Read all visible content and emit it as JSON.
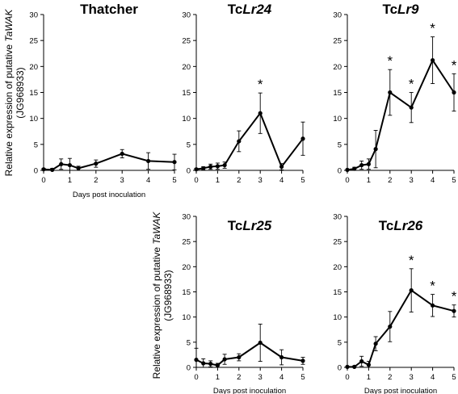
{
  "chart_data": [
    {
      "type": "line",
      "title_parts": [
        {
          "text": "Thatcher",
          "italic": false
        }
      ],
      "xlabel": "Days post inoculation",
      "ylabel_parts": [
        {
          "text": "Relative expression of putative ",
          "italic": false
        },
        {
          "text": "TaWAK",
          "italic": true
        }
      ],
      "ylabel_line2": "(JG968933)",
      "xlim": [
        0,
        5
      ],
      "ylim": [
        0,
        30
      ],
      "xticks": [
        0,
        1,
        2,
        3,
        4,
        5
      ],
      "yticks": [
        0,
        5,
        10,
        15,
        20,
        25,
        30
      ],
      "x": [
        0,
        0.33,
        0.67,
        1,
        1.33,
        2,
        3,
        4,
        5
      ],
      "y": [
        0.2,
        0.1,
        1.2,
        1.0,
        0.4,
        1.3,
        3.2,
        1.8,
        1.6
      ],
      "err": [
        0.2,
        0.3,
        1.0,
        1.3,
        0.4,
        0.7,
        0.8,
        1.6,
        1.5
      ],
      "significant": []
    },
    {
      "type": "line",
      "title_parts": [
        {
          "text": "Tc",
          "italic": false
        },
        {
          "text": "Lr24",
          "italic": true
        }
      ],
      "xlabel": "",
      "ylabel_parts": [],
      "xlim": [
        0,
        5
      ],
      "ylim": [
        0,
        30
      ],
      "xticks": [
        0,
        1,
        2,
        3,
        4,
        5
      ],
      "yticks": [
        0,
        5,
        10,
        15,
        20,
        25,
        30
      ],
      "x": [
        0,
        0.33,
        0.67,
        1,
        1.33,
        2,
        3,
        4,
        5
      ],
      "y": [
        0.2,
        0.4,
        0.7,
        0.8,
        1.0,
        5.6,
        11.0,
        0.7,
        6.1
      ],
      "err": [
        0.2,
        0.3,
        0.5,
        0.6,
        0.6,
        2.0,
        3.9,
        0.6,
        3.2
      ],
      "significant": [
        3
      ]
    },
    {
      "type": "line",
      "title_parts": [
        {
          "text": "Tc",
          "italic": false
        },
        {
          "text": "Lr9",
          "italic": true
        }
      ],
      "xlabel": "",
      "ylabel_parts": [],
      "xlim": [
        0,
        5
      ],
      "ylim": [
        0,
        30
      ],
      "xticks": [
        0,
        1,
        2,
        3,
        4,
        5
      ],
      "yticks": [
        0,
        5,
        10,
        15,
        20,
        25,
        30
      ],
      "x": [
        0,
        0.33,
        0.67,
        1,
        1.33,
        2,
        3,
        4,
        5
      ],
      "y": [
        0.1,
        0.3,
        1.0,
        1.2,
        4.1,
        15.0,
        12.1,
        21.2,
        15.0
      ],
      "err": [
        0.1,
        0.3,
        0.8,
        1.0,
        3.6,
        4.4,
        2.9,
        4.5,
        3.6
      ],
      "significant": [
        2,
        3,
        4,
        5
      ]
    },
    {
      "type": "line",
      "title_parts": [
        {
          "text": "Tc",
          "italic": false
        },
        {
          "text": "Lr25",
          "italic": true
        }
      ],
      "xlabel": "Days post inoculation",
      "ylabel_parts": [
        {
          "text": "Relative expression of putative ",
          "italic": false
        },
        {
          "text": "TaWAK",
          "italic": true
        }
      ],
      "ylabel_line2": "(JG968933)",
      "xlim": [
        0,
        5
      ],
      "ylim": [
        0,
        30
      ],
      "xticks": [
        0,
        1,
        2,
        3,
        4,
        5
      ],
      "yticks": [
        0,
        5,
        10,
        15,
        20,
        25,
        30
      ],
      "x": [
        0,
        0.33,
        0.67,
        1,
        1.33,
        2,
        3,
        4,
        5
      ],
      "y": [
        1.5,
        0.8,
        0.7,
        0.4,
        1.6,
        2.0,
        4.9,
        2.0,
        1.3
      ],
      "err": [
        2.3,
        0.9,
        0.6,
        0.4,
        1.0,
        0.7,
        3.7,
        1.5,
        0.7
      ],
      "significant": []
    },
    {
      "type": "line",
      "title_parts": [
        {
          "text": "Tc",
          "italic": false
        },
        {
          "text": "Lr26",
          "italic": true
        }
      ],
      "xlabel": "Days post inoculation",
      "ylabel_parts": [],
      "xlim": [
        0,
        5
      ],
      "ylim": [
        0,
        30
      ],
      "xticks": [
        0,
        1,
        2,
        3,
        4,
        5
      ],
      "yticks": [
        0,
        5,
        10,
        15,
        20,
        25,
        30
      ],
      "x": [
        0,
        0.33,
        0.67,
        1,
        1.33,
        2,
        3,
        4,
        5
      ],
      "y": [
        0.1,
        0.1,
        1.2,
        0.5,
        4.7,
        8.1,
        15.3,
        12.3,
        11.2
      ],
      "err": [
        0.1,
        0.2,
        1.0,
        0.7,
        1.4,
        3.0,
        4.3,
        2.2,
        1.2
      ],
      "significant": [
        3,
        4,
        5
      ]
    }
  ]
}
